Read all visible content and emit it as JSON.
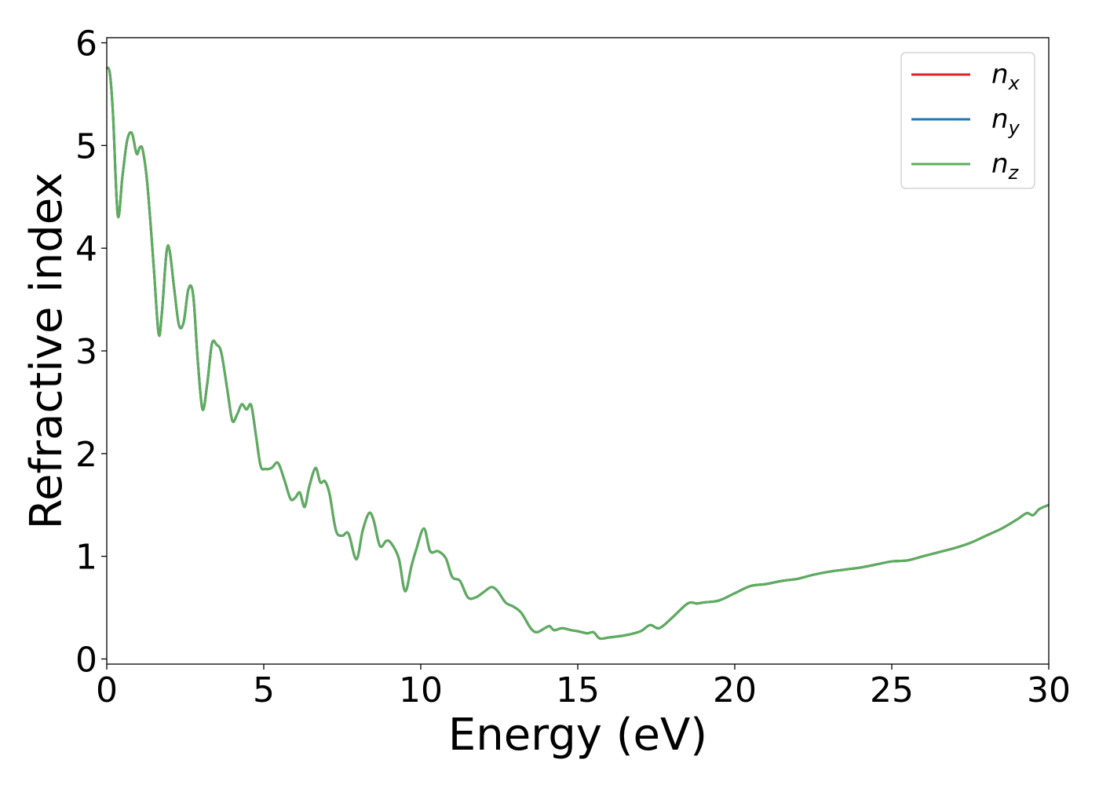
{
  "chart_data": {
    "type": "line",
    "title": "",
    "xlabel": "Energy (eV)",
    "ylabel": "Refractive index",
    "xlim": [
      0,
      30
    ],
    "ylim": [
      -0.05,
      6.05
    ],
    "xticks": [
      0,
      5,
      10,
      15,
      20,
      25,
      30
    ],
    "yticks": [
      0,
      1,
      2,
      3,
      4,
      5,
      6
    ],
    "grid": false,
    "legend_position": "top-right",
    "x": [
      0.0,
      0.1,
      0.2,
      0.35,
      0.5,
      0.65,
      0.8,
      0.95,
      1.05,
      1.15,
      1.3,
      1.5,
      1.65,
      1.75,
      1.9,
      2.0,
      2.15,
      2.3,
      2.45,
      2.6,
      2.75,
      2.9,
      3.05,
      3.2,
      3.35,
      3.5,
      3.65,
      3.85,
      4.0,
      4.15,
      4.3,
      4.45,
      4.6,
      4.75,
      4.9,
      5.05,
      5.25,
      5.45,
      5.65,
      5.85,
      6.0,
      6.15,
      6.3,
      6.45,
      6.65,
      6.8,
      6.95,
      7.1,
      7.3,
      7.5,
      7.7,
      7.95,
      8.15,
      8.35,
      8.5,
      8.7,
      8.9,
      9.05,
      9.3,
      9.5,
      9.7,
      9.85,
      10.1,
      10.3,
      10.55,
      10.8,
      11.0,
      11.25,
      11.5,
      11.75,
      12.0,
      12.25,
      12.45,
      12.7,
      12.95,
      13.2,
      13.5,
      13.7,
      13.95,
      14.1,
      14.25,
      14.5,
      14.8,
      15.0,
      15.3,
      15.5,
      15.7,
      16.0,
      16.5,
      17.0,
      17.3,
      17.6,
      18.0,
      18.5,
      18.8,
      19.0,
      19.5,
      20.0,
      20.5,
      21.0,
      21.5,
      22.0,
      22.5,
      23.0,
      23.5,
      24.0,
      24.5,
      25.0,
      25.5,
      26.0,
      26.5,
      27.0,
      27.5,
      28.0,
      28.5,
      29.0,
      29.3,
      29.5,
      29.7,
      30.0
    ],
    "series": [
      {
        "name": "n_x",
        "color": "#d62728",
        "values": [
          5.76,
          5.7,
          5.3,
          4.32,
          4.7,
          5.05,
          5.12,
          4.92,
          4.98,
          4.95,
          4.6,
          3.8,
          3.17,
          3.35,
          3.95,
          3.98,
          3.6,
          3.25,
          3.28,
          3.6,
          3.55,
          2.9,
          2.43,
          2.68,
          3.07,
          3.06,
          2.98,
          2.6,
          2.32,
          2.38,
          2.48,
          2.43,
          2.47,
          2.18,
          1.88,
          1.85,
          1.86,
          1.91,
          1.75,
          1.56,
          1.57,
          1.62,
          1.48,
          1.68,
          1.86,
          1.72,
          1.73,
          1.6,
          1.25,
          1.2,
          1.22,
          0.97,
          1.25,
          1.42,
          1.35,
          1.1,
          1.15,
          1.13,
          0.98,
          0.66,
          0.9,
          1.06,
          1.27,
          1.05,
          1.05,
          0.98,
          0.8,
          0.76,
          0.6,
          0.6,
          0.65,
          0.7,
          0.66,
          0.55,
          0.51,
          0.45,
          0.3,
          0.26,
          0.3,
          0.32,
          0.28,
          0.3,
          0.28,
          0.27,
          0.25,
          0.26,
          0.2,
          0.21,
          0.23,
          0.27,
          0.33,
          0.3,
          0.4,
          0.54,
          0.54,
          0.55,
          0.57,
          0.64,
          0.71,
          0.73,
          0.76,
          0.78,
          0.82,
          0.85,
          0.87,
          0.89,
          0.92,
          0.95,
          0.96,
          1.0,
          1.04,
          1.08,
          1.13,
          1.2,
          1.27,
          1.36,
          1.42,
          1.4,
          1.46,
          1.5
        ]
      },
      {
        "name": "n_y",
        "color": "#1f77b4",
        "values": [
          5.76,
          5.7,
          5.3,
          4.32,
          4.7,
          5.05,
          5.12,
          4.92,
          4.98,
          4.95,
          4.6,
          3.8,
          3.17,
          3.35,
          3.95,
          3.98,
          3.6,
          3.25,
          3.28,
          3.6,
          3.55,
          2.9,
          2.43,
          2.68,
          3.07,
          3.06,
          2.98,
          2.6,
          2.32,
          2.38,
          2.48,
          2.43,
          2.47,
          2.18,
          1.88,
          1.85,
          1.86,
          1.91,
          1.75,
          1.56,
          1.57,
          1.62,
          1.48,
          1.68,
          1.86,
          1.72,
          1.73,
          1.6,
          1.25,
          1.2,
          1.22,
          0.97,
          1.25,
          1.42,
          1.35,
          1.1,
          1.15,
          1.13,
          0.98,
          0.66,
          0.9,
          1.06,
          1.27,
          1.05,
          1.05,
          0.98,
          0.8,
          0.76,
          0.6,
          0.6,
          0.65,
          0.7,
          0.66,
          0.55,
          0.51,
          0.45,
          0.3,
          0.26,
          0.3,
          0.32,
          0.28,
          0.3,
          0.28,
          0.27,
          0.25,
          0.26,
          0.2,
          0.21,
          0.23,
          0.27,
          0.33,
          0.3,
          0.4,
          0.54,
          0.54,
          0.55,
          0.57,
          0.64,
          0.71,
          0.73,
          0.76,
          0.78,
          0.82,
          0.85,
          0.87,
          0.89,
          0.92,
          0.95,
          0.96,
          1.0,
          1.04,
          1.08,
          1.13,
          1.2,
          1.27,
          1.36,
          1.42,
          1.4,
          1.46,
          1.5
        ]
      },
      {
        "name": "n_z",
        "color": "#5cad5c",
        "values": [
          5.76,
          5.7,
          5.3,
          4.32,
          4.7,
          5.05,
          5.12,
          4.92,
          4.98,
          4.95,
          4.6,
          3.8,
          3.17,
          3.35,
          3.95,
          3.98,
          3.6,
          3.25,
          3.28,
          3.6,
          3.55,
          2.9,
          2.43,
          2.68,
          3.07,
          3.06,
          2.98,
          2.6,
          2.32,
          2.38,
          2.48,
          2.43,
          2.47,
          2.18,
          1.88,
          1.85,
          1.86,
          1.91,
          1.75,
          1.56,
          1.57,
          1.62,
          1.48,
          1.68,
          1.86,
          1.72,
          1.73,
          1.6,
          1.25,
          1.2,
          1.22,
          0.97,
          1.25,
          1.42,
          1.35,
          1.1,
          1.15,
          1.13,
          0.98,
          0.66,
          0.9,
          1.06,
          1.27,
          1.05,
          1.05,
          0.98,
          0.8,
          0.76,
          0.6,
          0.6,
          0.65,
          0.7,
          0.66,
          0.55,
          0.51,
          0.45,
          0.3,
          0.26,
          0.3,
          0.32,
          0.28,
          0.3,
          0.28,
          0.27,
          0.25,
          0.26,
          0.2,
          0.21,
          0.23,
          0.27,
          0.33,
          0.3,
          0.4,
          0.54,
          0.54,
          0.55,
          0.57,
          0.64,
          0.71,
          0.73,
          0.76,
          0.78,
          0.82,
          0.85,
          0.87,
          0.89,
          0.92,
          0.95,
          0.96,
          1.0,
          1.04,
          1.08,
          1.13,
          1.2,
          1.27,
          1.36,
          1.42,
          1.4,
          1.46,
          1.5
        ]
      }
    ],
    "legend": [
      {
        "base": "n",
        "sub": "x",
        "color": "#d62728"
      },
      {
        "base": "n",
        "sub": "y",
        "color": "#1f77b4"
      },
      {
        "base": "n",
        "sub": "z",
        "color": "#5cad5c"
      }
    ]
  }
}
